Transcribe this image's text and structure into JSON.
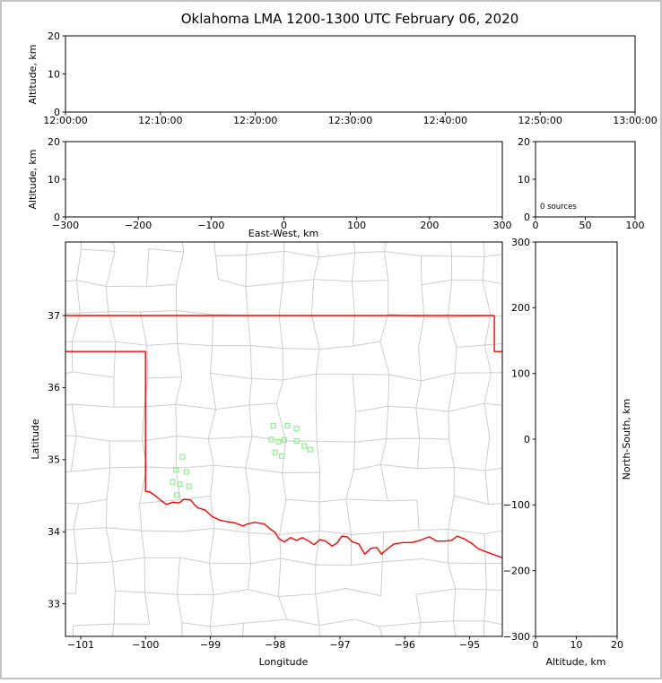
{
  "page": {
    "title": "Oklahoma LMA 1200-1300 UTC February 06, 2020"
  },
  "colors": {
    "axis": "#000000",
    "county_lines": "#c8c8c8",
    "state_boundary": "#ff0000",
    "station_marker": "#90ee90",
    "figure_border": "#c3c3c3",
    "background": "#ffffff"
  },
  "chart_data": [
    {
      "id": "time-height",
      "type": "scatter",
      "xlabel": "",
      "ylabel": "Altitude, km",
      "xlim": [
        0,
        60
      ],
      "ylim": [
        0,
        20
      ],
      "xticks": [
        0,
        10,
        20,
        30,
        40,
        50,
        60
      ],
      "xtick_labels": [
        "12:00:00",
        "12:10:00",
        "12:20:00",
        "12:30:00",
        "12:40:00",
        "12:50:00",
        "13:00:00"
      ],
      "yticks": [
        0,
        10,
        20
      ],
      "ytick_labels": [
        "0",
        "10",
        "20"
      ],
      "points": []
    },
    {
      "id": "east-west-height",
      "type": "scatter",
      "xlabel": "East-West, km",
      "ylabel": "Altitude, km",
      "xlim": [
        -300,
        300
      ],
      "ylim": [
        0,
        20
      ],
      "xticks": [
        -300,
        -200,
        -100,
        0,
        100,
        200,
        300
      ],
      "xtick_labels": [
        "−300",
        "−200",
        "−100",
        "0",
        "100",
        "200",
        "300"
      ],
      "yticks": [
        0,
        10,
        20
      ],
      "ytick_labels": [
        "0",
        "10",
        "20"
      ],
      "points": []
    },
    {
      "id": "altitude-histogram",
      "type": "line",
      "annotation": "0 sources",
      "xlabel": "",
      "ylabel": "",
      "xlim": [
        0,
        100
      ],
      "ylim": [
        0,
        20
      ],
      "xticks": [
        0,
        50,
        100
      ],
      "xtick_labels": [
        "0",
        "50",
        "100"
      ],
      "yticks": [
        0,
        10,
        20
      ],
      "ytick_labels": [
        "0",
        "10",
        "20"
      ],
      "points": []
    },
    {
      "id": "plan-view-map",
      "type": "scatter",
      "xlabel": "Longitude",
      "ylabel": "Latitude",
      "xlim": [
        -101.235,
        -94.495
      ],
      "ylim": [
        32.548,
        38.02
      ],
      "xticks": [
        -101,
        -100,
        -99,
        -98,
        -97,
        -96,
        -95
      ],
      "xtick_labels": [
        "−101",
        "−100",
        "−99",
        "−98",
        "−97",
        "−96",
        "−95"
      ],
      "yticks": [
        33,
        34,
        35,
        36,
        37
      ],
      "ytick_labels": [
        "33",
        "34",
        "35",
        "36",
        "37"
      ],
      "lma_stations_lon_lat": [
        [
          -98.03,
          35.47
        ],
        [
          -97.81,
          35.47
        ],
        [
          -97.67,
          35.43
        ],
        [
          -98.06,
          35.28
        ],
        [
          -97.95,
          35.25
        ],
        [
          -97.86,
          35.27
        ],
        [
          -97.67,
          35.26
        ],
        [
          -98.0,
          35.1
        ],
        [
          -97.9,
          35.05
        ],
        [
          -97.55,
          35.19
        ],
        [
          -97.46,
          35.14
        ],
        [
          -99.43,
          35.04
        ],
        [
          -99.53,
          34.86
        ],
        [
          -99.37,
          34.83
        ],
        [
          -99.58,
          34.69
        ],
        [
          -99.47,
          34.66
        ],
        [
          -99.33,
          34.63
        ],
        [
          -99.52,
          34.51
        ]
      ],
      "state_boundary_lon_lat": {
        "north_border": [
          [
            -101.235,
            37.0
          ],
          [
            -94.618,
            37.0
          ]
        ],
        "east_border": [
          [
            -94.618,
            37.0
          ],
          [
            -94.618,
            36.5
          ],
          [
            -94.495,
            36.5
          ]
        ],
        "west_border_and_red_river": [
          [
            -101.235,
            36.5
          ],
          [
            -100.0,
            36.5
          ],
          [
            -100.0,
            34.561
          ],
          [
            -99.93,
            34.55
          ],
          [
            -99.85,
            34.5
          ],
          [
            -99.77,
            34.44
          ],
          [
            -99.68,
            34.38
          ],
          [
            -99.58,
            34.41
          ],
          [
            -99.48,
            34.4
          ],
          [
            -99.41,
            34.45
          ],
          [
            -99.3,
            34.44
          ],
          [
            -99.24,
            34.37
          ],
          [
            -99.19,
            34.33
          ],
          [
            -99.08,
            34.3
          ],
          [
            -98.97,
            34.21
          ],
          [
            -98.85,
            34.16
          ],
          [
            -98.74,
            34.14
          ],
          [
            -98.61,
            34.12
          ],
          [
            -98.5,
            34.08
          ],
          [
            -98.42,
            34.11
          ],
          [
            -98.32,
            34.13
          ],
          [
            -98.17,
            34.11
          ],
          [
            -98.08,
            34.04
          ],
          [
            -98.0,
            33.99
          ],
          [
            -97.94,
            33.9
          ],
          [
            -97.86,
            33.86
          ],
          [
            -97.76,
            33.92
          ],
          [
            -97.67,
            33.88
          ],
          [
            -97.58,
            33.92
          ],
          [
            -97.48,
            33.87
          ],
          [
            -97.4,
            33.82
          ],
          [
            -97.31,
            33.89
          ],
          [
            -97.22,
            33.87
          ],
          [
            -97.12,
            33.8
          ],
          [
            -97.04,
            33.85
          ],
          [
            -96.97,
            33.94
          ],
          [
            -96.89,
            33.93
          ],
          [
            -96.81,
            33.86
          ],
          [
            -96.71,
            33.83
          ],
          [
            -96.62,
            33.69
          ],
          [
            -96.52,
            33.77
          ],
          [
            -96.43,
            33.78
          ],
          [
            -96.36,
            33.69
          ],
          [
            -96.27,
            33.76
          ],
          [
            -96.17,
            33.83
          ],
          [
            -96.03,
            33.85
          ],
          [
            -95.89,
            33.85
          ],
          [
            -95.77,
            33.88
          ],
          [
            -95.62,
            33.93
          ],
          [
            -95.51,
            33.87
          ],
          [
            -95.39,
            33.87
          ],
          [
            -95.28,
            33.88
          ],
          [
            -95.19,
            33.94
          ],
          [
            -95.08,
            33.9
          ],
          [
            -94.97,
            33.84
          ],
          [
            -94.86,
            33.76
          ],
          [
            -94.74,
            33.72
          ],
          [
            -94.62,
            33.68
          ],
          [
            -94.495,
            33.64
          ]
        ]
      },
      "points": []
    },
    {
      "id": "altitude-north-south",
      "type": "scatter",
      "xlabel": "Altitude, km",
      "ylabel": "North-South, km",
      "xlim": [
        0,
        20
      ],
      "ylim": [
        -300,
        300
      ],
      "xticks": [
        0,
        10,
        20
      ],
      "xtick_labels": [
        "0",
        "10",
        "20"
      ],
      "yticks": [
        -300,
        -200,
        -100,
        0,
        100,
        200,
        300
      ],
      "ytick_labels": [
        "−300",
        "−200",
        "−100",
        "0",
        "100",
        "200",
        "300"
      ],
      "points": []
    }
  ]
}
